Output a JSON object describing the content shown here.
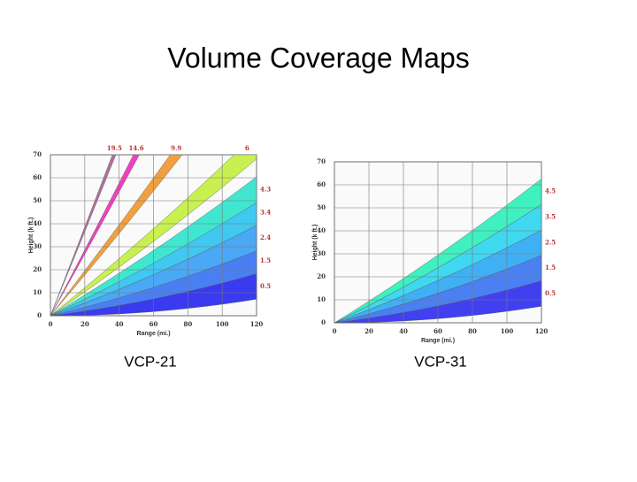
{
  "slide": {
    "title": "Volume Coverage Maps"
  },
  "chart_data": [
    {
      "type": "beam",
      "caption": "VCP-21",
      "xlabel": "Range (mi.)",
      "ylabel": "Height (k ft.)",
      "xlim": [
        0,
        120
      ],
      "ylim": [
        0,
        70
      ],
      "xticks": [
        0,
        20,
        40,
        60,
        80,
        100,
        120
      ],
      "yticks": [
        0,
        10,
        20,
        30,
        40,
        50,
        60,
        70
      ],
      "grid": true,
      "values": [
        0.5,
        1.5,
        2.4,
        3.4,
        4.3,
        6.0,
        9.9,
        14.6,
        19.5
      ],
      "colors": [
        "#3a3af0",
        "#4a7ff2",
        "#4aa8f5",
        "#40c8f0",
        "#40e6d0",
        "#c8f050",
        "#f0a040",
        "#f040c0",
        "#b070a0"
      ]
    },
    {
      "type": "beam",
      "caption": "VCP-31",
      "xlabel": "Range (mi.)",
      "ylabel": "Height (k ft.)",
      "xlim": [
        0,
        120
      ],
      "ylim": [
        0,
        70
      ],
      "xticks": [
        0,
        20,
        40,
        60,
        80,
        100,
        120
      ],
      "yticks": [
        0,
        10,
        20,
        30,
        40,
        50,
        60,
        70
      ],
      "grid": true,
      "values": [
        0.5,
        1.5,
        2.5,
        3.5,
        4.5
      ],
      "colors": [
        "#4040f0",
        "#4a80f2",
        "#40b0f5",
        "#40d8f0",
        "#40f0c0"
      ]
    }
  ]
}
